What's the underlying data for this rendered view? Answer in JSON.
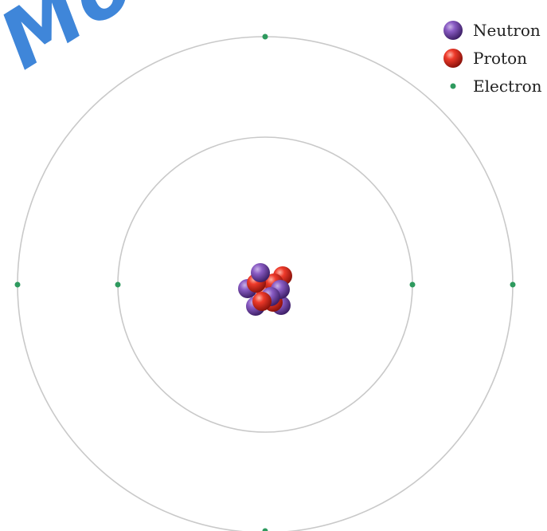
{
  "watermark": {
    "text": "Mo"
  },
  "legend": {
    "items": [
      {
        "label": "Neutron",
        "icon": "neutron-icon",
        "color": "#6a3d9a"
      },
      {
        "label": "Proton",
        "icon": "proton-icon",
        "color": "#d92b20"
      },
      {
        "label": "Electron",
        "icon": "electron-dot-icon",
        "color": "#2e9a5e"
      }
    ]
  },
  "atom": {
    "shells": [
      {
        "name": "inner",
        "electrons": 2
      },
      {
        "name": "outer",
        "electrons": 4
      }
    ],
    "nucleus": {
      "neutrons": 6,
      "protons": 6
    },
    "colors": {
      "orbit": "#c9c9c9",
      "electron": "#2e9a5e",
      "neutron": "#6a3d9a",
      "proton": "#d92b20"
    }
  }
}
